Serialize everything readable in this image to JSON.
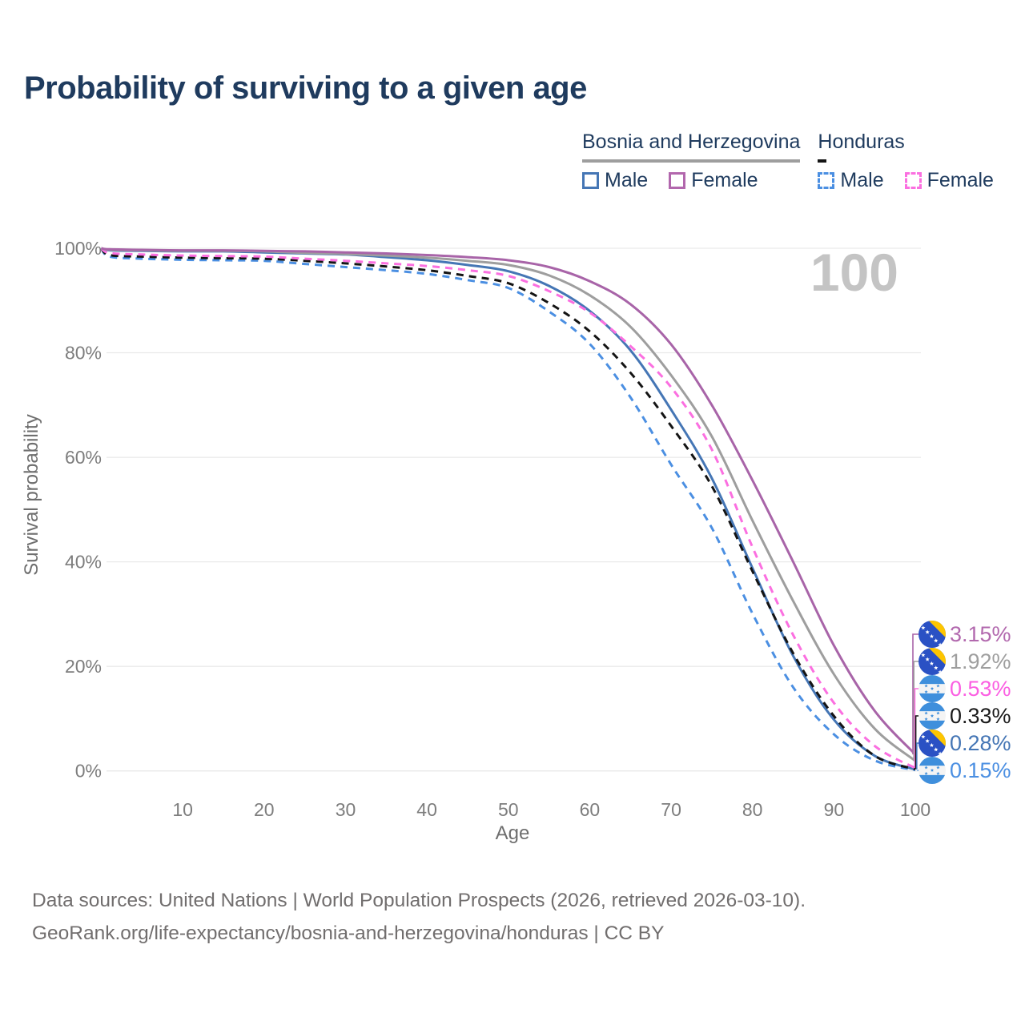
{
  "title": "Probability of surviving to a given age",
  "watermark": "100",
  "legend": {
    "groups": [
      {
        "id": "bosnia",
        "label": "Bosnia and Herzegovina",
        "line_color": "#9e9e9e",
        "line_dashed": false,
        "items": [
          {
            "label": "Male",
            "color": "#4576b5",
            "dashed": false
          },
          {
            "label": "Female",
            "color": "#b267ad",
            "dashed": false
          }
        ]
      },
      {
        "id": "honduras",
        "label": "Honduras",
        "line_color": "#141414",
        "line_dashed": true,
        "items": [
          {
            "label": "Male",
            "color": "#4b8fe2",
            "dashed": true
          },
          {
            "label": "Female",
            "color": "#fb6fe0",
            "dashed": true
          }
        ]
      }
    ]
  },
  "chart_data": {
    "type": "line",
    "title": "Probability of surviving to a given age",
    "xlabel": "Age",
    "ylabel": "Survival probability",
    "xlim": [
      0,
      100
    ],
    "ylim": [
      0,
      100
    ],
    "grid": "horizontal",
    "x_ticks": [
      10,
      20,
      30,
      40,
      50,
      60,
      70,
      80,
      90,
      100
    ],
    "y_ticks": [
      0,
      20,
      40,
      60,
      80,
      100
    ],
    "y_tick_suffix": "%",
    "x": [
      0,
      1,
      5,
      10,
      15,
      20,
      25,
      30,
      35,
      40,
      45,
      50,
      55,
      60,
      65,
      70,
      75,
      80,
      85,
      90,
      95,
      100
    ],
    "series": [
      {
        "id": "bosnia-female",
        "name": "Bosnia and Herzegovina — Female",
        "color": "#a864a8",
        "dashed": false,
        "flag": "bosnia",
        "end_label": "3.15%",
        "end_label_color": "#b269ae",
        "values": [
          100,
          99.8,
          99.7,
          99.6,
          99.6,
          99.5,
          99.4,
          99.2,
          99.0,
          98.7,
          98.3,
          97.7,
          96.4,
          93.7,
          89.3,
          81.6,
          70.0,
          55.6,
          40.0,
          24.0,
          11.5,
          3.15
        ]
      },
      {
        "id": "bosnia-total",
        "name": "Bosnia and Herzegovina",
        "color": "#9e9e9e",
        "dashed": false,
        "flag": "bosnia",
        "end_label": "1.92%",
        "end_label_color": "#9e9e9e",
        "values": [
          100,
          99.7,
          99.6,
          99.5,
          99.5,
          99.4,
          99.1,
          98.9,
          98.6,
          98.2,
          97.6,
          96.8,
          94.8,
          91.0,
          85.0,
          75.7,
          64.0,
          47.9,
          32.5,
          18.5,
          8.1,
          1.92
        ]
      },
      {
        "id": "honduras-female",
        "name": "Honduras — Female",
        "color": "#fb6fe0",
        "dashed": true,
        "flag": "honduras",
        "end_label": "0.53%",
        "end_label_color": "#fb5fe2",
        "values": [
          100,
          99.1,
          98.8,
          98.6,
          98.5,
          98.4,
          98.0,
          97.6,
          97.1,
          96.6,
          95.8,
          94.7,
          91.8,
          87.7,
          81.3,
          73.4,
          61.5,
          42.8,
          26.0,
          13.0,
          4.8,
          0.53
        ]
      },
      {
        "id": "honduras-total",
        "name": "Honduras",
        "color": "#141414",
        "dashed": true,
        "flag": "honduras",
        "end_label": "0.33%",
        "end_label_color": "#1a1a1a",
        "values": [
          100,
          98.7,
          98.4,
          98.2,
          98.1,
          98.0,
          97.6,
          97.1,
          96.5,
          95.8,
          94.7,
          93.3,
          89.5,
          84.1,
          76.2,
          66.0,
          54.5,
          38.2,
          22.5,
          10.5,
          2.9,
          0.33
        ]
      },
      {
        "id": "bosnia-male",
        "name": "Bosnia and Herzegovina — Male",
        "color": "#4576b5",
        "dashed": false,
        "flag": "bosnia",
        "end_label": "0.28%",
        "end_label_color": "#4576b5",
        "values": [
          100,
          99.6,
          99.5,
          99.4,
          99.4,
          99.2,
          99.0,
          98.8,
          98.3,
          97.7,
          96.8,
          95.6,
          92.8,
          88.0,
          80.5,
          69.1,
          56.0,
          38.8,
          22.0,
          9.8,
          2.9,
          0.28
        ]
      },
      {
        "id": "honduras-male",
        "name": "Honduras — Male",
        "color": "#4b8fe2",
        "dashed": true,
        "flag": "honduras",
        "end_label": "0.15%",
        "end_label_color": "#4b8fe2",
        "values": [
          100,
          98.4,
          98.0,
          97.8,
          97.7,
          97.6,
          97.0,
          96.4,
          95.8,
          95.1,
          93.9,
          92.4,
          87.9,
          81.7,
          71.5,
          58.6,
          46.5,
          30.1,
          16.0,
          7.0,
          2.0,
          0.15
        ]
      }
    ]
  },
  "footer": {
    "line1": "Data sources: United Nations | World Population Prospects (2026, retrieved 2026-03-10).",
    "line2": "GeoRank.org/life-expectancy/bosnia-and-herzegovina/honduras | CC BY"
  },
  "colors": {
    "title": "#1f3b5e",
    "gridline": "#e9e9e9",
    "tick_text": "#7d7d7d",
    "watermark": "#c4c4c4",
    "footer_text": "#716e6e",
    "bosnia_flag_blue": "#2a51c4",
    "bosnia_flag_yellow": "#fdc500",
    "honduras_flag_blue": "#3f8fdc"
  }
}
